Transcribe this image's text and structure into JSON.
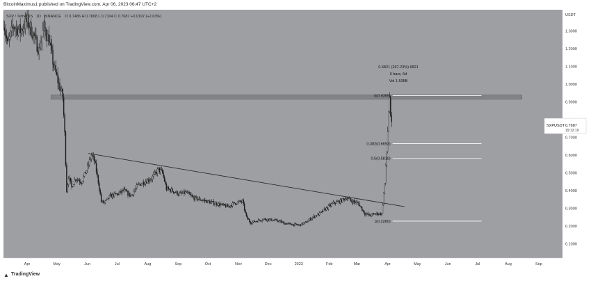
{
  "header": {
    "published_line": "BitcoinMaximus1 published on TradingView.com, Apr 06, 2023 06:47 UTC+2"
  },
  "footer": {
    "logo_icon": "tradingview-logo-icon",
    "logo_text": "TradingView"
  },
  "colors": {
    "plot_background": "#9e9fa3",
    "axis_background": "#ffffff",
    "candle": "#1a1a1a",
    "trendline": "#2b2b2b",
    "resistance_zone": "#7d7e82",
    "fib_line": "#ffffff",
    "price_label_bg": "#ffffff"
  },
  "symbol_info": {
    "symbol": "SXP / TetherUS",
    "interval": "1D",
    "exchange": "BINANCE",
    "ohlc_text": "O 0.7486  H 0.7808  L 0.7104  C 0.7687  +0.0197 (+2.63%)"
  },
  "measure_tooltip": {
    "line1": "0.6821 (267.23%) 6821",
    "line2": "6 bars, 6d",
    "line3": "Vol 1.535B"
  },
  "price_label": {
    "symbol": "SXPUSDT",
    "price": "0.7687",
    "countdown": "19:12:19"
  },
  "chart_data": {
    "type": "candlestick",
    "title": "",
    "y_axis_unit": "USDT",
    "y_range": [
      0.02,
      1.42
    ],
    "y_ticks": [
      "1.3000",
      "1.2000",
      "1.1000",
      "1.0000",
      "0.9000",
      "0.8000",
      "0.7000",
      "0.6000",
      "0.5000",
      "0.4000",
      "0.3000",
      "0.2000",
      "0.1000"
    ],
    "x_ticks": [
      "Apr",
      "May",
      "Jun",
      "Jul",
      "Aug",
      "Sep",
      "Oct",
      "Nov",
      "Dec",
      "2023",
      "Feb",
      "Mar",
      "Apr",
      "May",
      "Jun",
      "Jul",
      "Aug",
      "Sep"
    ],
    "x_range": [
      "2022-03-08",
      "2023-09-25"
    ],
    "grid": false,
    "series": [
      {
        "points": [
          [
            "2022-03-08",
            1.36
          ],
          [
            "2022-03-12",
            1.22
          ],
          [
            "2022-03-18",
            1.33
          ],
          [
            "2022-03-25",
            1.3
          ],
          [
            "2022-04-01",
            1.36
          ],
          [
            "2022-04-07",
            1.28
          ],
          [
            "2022-04-13",
            1.19
          ],
          [
            "2022-04-18",
            1.32
          ],
          [
            "2022-04-23",
            1.25
          ],
          [
            "2022-04-28",
            1.1
          ],
          [
            "2022-05-03",
            1.0
          ],
          [
            "2022-05-07",
            0.93
          ],
          [
            "2022-05-09",
            0.72
          ],
          [
            "2022-05-11",
            0.4
          ],
          [
            "2022-05-13",
            0.48
          ],
          [
            "2022-05-16",
            0.42
          ],
          [
            "2022-05-20",
            0.47
          ],
          [
            "2022-05-26",
            0.45
          ],
          [
            "2022-06-01",
            0.53
          ],
          [
            "2022-06-05",
            0.6
          ],
          [
            "2022-06-08",
            0.57
          ],
          [
            "2022-06-12",
            0.45
          ],
          [
            "2022-06-15",
            0.34
          ],
          [
            "2022-06-18",
            0.33
          ],
          [
            "2022-06-24",
            0.37
          ],
          [
            "2022-07-01",
            0.38
          ],
          [
            "2022-07-08",
            0.4
          ],
          [
            "2022-07-15",
            0.37
          ],
          [
            "2022-07-22",
            0.43
          ],
          [
            "2022-07-29",
            0.45
          ],
          [
            "2022-08-05",
            0.47
          ],
          [
            "2022-08-12",
            0.52
          ],
          [
            "2022-08-16",
            0.5
          ],
          [
            "2022-08-20",
            0.41
          ],
          [
            "2022-08-26",
            0.4
          ],
          [
            "2022-09-02",
            0.38
          ],
          [
            "2022-09-09",
            0.39
          ],
          [
            "2022-09-16",
            0.36
          ],
          [
            "2022-09-23",
            0.35
          ],
          [
            "2022-09-30",
            0.34
          ],
          [
            "2022-10-07",
            0.33
          ],
          [
            "2022-10-14",
            0.32
          ],
          [
            "2022-10-21",
            0.31
          ],
          [
            "2022-10-28",
            0.33
          ],
          [
            "2022-11-05",
            0.34
          ],
          [
            "2022-11-09",
            0.25
          ],
          [
            "2022-11-13",
            0.22
          ],
          [
            "2022-11-20",
            0.23
          ],
          [
            "2022-11-27",
            0.24
          ],
          [
            "2022-12-04",
            0.235
          ],
          [
            "2022-12-11",
            0.23
          ],
          [
            "2022-12-18",
            0.215
          ],
          [
            "2022-12-25",
            0.21
          ],
          [
            "2023-01-01",
            0.205
          ],
          [
            "2023-01-08",
            0.22
          ],
          [
            "2023-01-15",
            0.25
          ],
          [
            "2023-01-22",
            0.27
          ],
          [
            "2023-01-29",
            0.3
          ],
          [
            "2023-02-05",
            0.33
          ],
          [
            "2023-02-12",
            0.34
          ],
          [
            "2023-02-18",
            0.36
          ],
          [
            "2023-02-24",
            0.34
          ],
          [
            "2023-03-02",
            0.33
          ],
          [
            "2023-03-09",
            0.27
          ],
          [
            "2023-03-14",
            0.26
          ],
          [
            "2023-03-20",
            0.27
          ],
          [
            "2023-03-26",
            0.27
          ],
          [
            "2023-03-29",
            0.44
          ],
          [
            "2023-03-31",
            0.62
          ],
          [
            "2023-04-02",
            0.85
          ],
          [
            "2023-04-03",
            0.93
          ],
          [
            "2023-04-04",
            0.8
          ],
          [
            "2023-04-05",
            0.77
          ]
        ]
      }
    ],
    "resistance_zone": {
      "from": 0.915,
      "to": 0.94,
      "x_start": "2022-04-25",
      "x_end": "2023-08-15"
    },
    "trendline": {
      "start": [
        "2022-06-02",
        0.61
      ],
      "end": [
        "2023-04-18",
        0.31
      ]
    },
    "fibonacci": [
      {
        "label": "0(0.9355)",
        "value": 0.9355
      },
      {
        "label": "0.382(0.6653)",
        "value": 0.6653
      },
      {
        "label": "0.5(0.5818)",
        "value": 0.5818
      },
      {
        "label": "1(0.2280)",
        "value": 0.228
      }
    ],
    "fib_x_range": [
      "2023-04-06",
      "2023-07-05"
    ],
    "last_price": 0.7687
  }
}
